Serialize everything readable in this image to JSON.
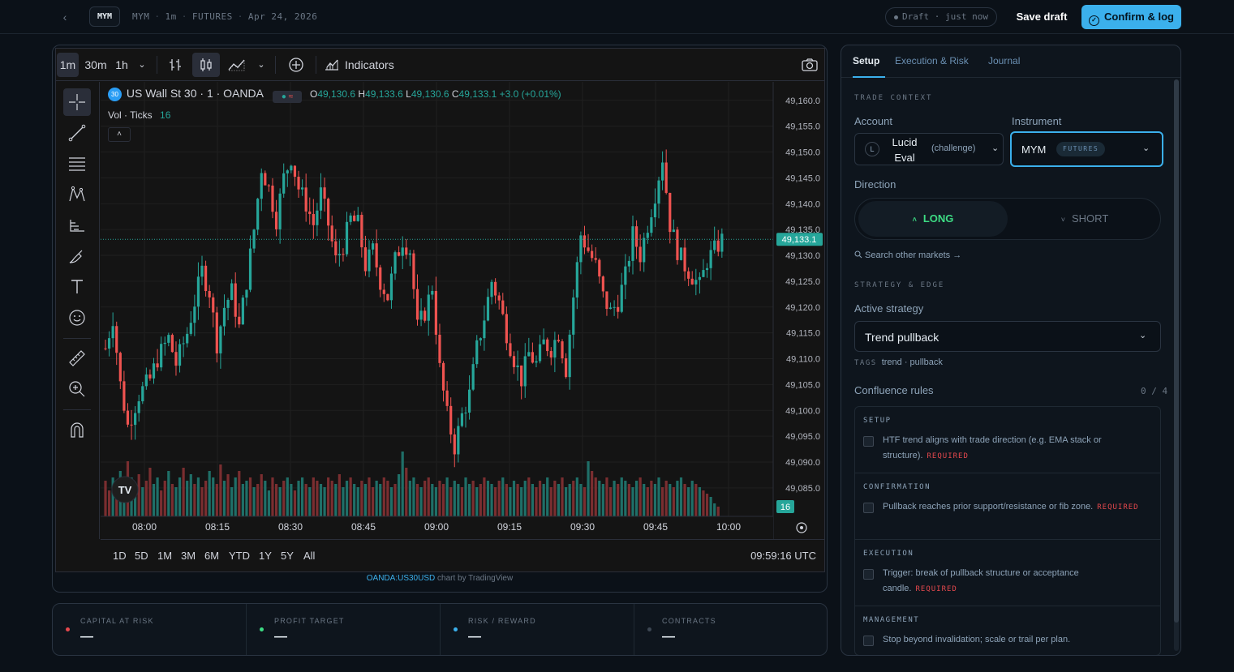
{
  "topbar": {
    "symbol": "MYM",
    "crumb": [
      "MYM",
      "1m",
      "FUTURES",
      "Apr 24, 2026"
    ],
    "draft_status": "Draft · just now",
    "save_draft": "Save draft",
    "confirm": "Confirm & log"
  },
  "toolbar": {
    "intervals": [
      "1m",
      "30m",
      "1h"
    ],
    "active_interval": "1m",
    "indicators": "Indicators"
  },
  "legend": {
    "badge": "30",
    "title": "US Wall St 30 · 1 · OANDA",
    "o_label": "O",
    "o": "49,130.6",
    "h_label": "H",
    "h": "49,133.6",
    "l_label": "L",
    "l": "49,130.6",
    "c_label": "C",
    "c": "49,133.1",
    "change": "+3.0 (+0.01%)",
    "vol_label": "Vol · Ticks",
    "vol_value": "16"
  },
  "chart_data": {
    "type": "candlestick",
    "symbol": "OANDA:US30USD",
    "interval": "1m",
    "y_ticks": [
      "49,160.0",
      "49,155.0",
      "49,150.0",
      "49,145.0",
      "49,140.0",
      "49,135.0",
      "49,130.0",
      "49,125.0",
      "49,120.0",
      "49,115.0",
      "49,110.0",
      "49,105.0",
      "49,100.0",
      "49,095.0",
      "49,090.0",
      "49,085.0"
    ],
    "ylim": [
      49082,
      49162
    ],
    "x_ticks": [
      "08:00",
      "08:15",
      "08:30",
      "08:45",
      "09:00",
      "09:15",
      "09:30",
      "09:45",
      "10:00"
    ],
    "last_price": "49,133.1",
    "last_volume": "16",
    "close_path": [
      [
        0,
        49112
      ],
      [
        2,
        49118
      ],
      [
        4,
        49105
      ],
      [
        6,
        49097
      ],
      [
        9,
        49103
      ],
      [
        12,
        49106
      ],
      [
        14,
        49110
      ],
      [
        17,
        49114
      ],
      [
        19,
        49109
      ],
      [
        22,
        49115
      ],
      [
        24,
        49121
      ],
      [
        26,
        49127
      ],
      [
        28,
        49123
      ],
      [
        30,
        49113
      ],
      [
        32,
        49120
      ],
      [
        34,
        49123
      ],
      [
        36,
        49116
      ],
      [
        38,
        49125
      ],
      [
        40,
        49135
      ],
      [
        42,
        49147
      ],
      [
        44,
        49143
      ],
      [
        46,
        49137
      ],
      [
        48,
        49145
      ],
      [
        50,
        49149
      ],
      [
        52,
        49143
      ],
      [
        54,
        49140
      ],
      [
        56,
        49136
      ],
      [
        58,
        49142
      ],
      [
        60,
        49136
      ],
      [
        62,
        49129
      ],
      [
        64,
        49132
      ],
      [
        66,
        49137
      ],
      [
        68,
        49136
      ],
      [
        70,
        49128
      ],
      [
        72,
        49131
      ],
      [
        74,
        49125
      ],
      [
        76,
        49122
      ],
      [
        78,
        49129
      ],
      [
        80,
        49133
      ],
      [
        82,
        49131
      ],
      [
        84,
        49116
      ],
      [
        86,
        49119
      ],
      [
        88,
        49124
      ],
      [
        90,
        49108
      ],
      [
        92,
        49099
      ],
      [
        94,
        49093
      ],
      [
        96,
        49099
      ],
      [
        98,
        49103
      ],
      [
        100,
        49112
      ],
      [
        102,
        49118
      ],
      [
        104,
        49125
      ],
      [
        106,
        49121
      ],
      [
        108,
        49115
      ],
      [
        110,
        49110
      ],
      [
        112,
        49106
      ],
      [
        114,
        49111
      ],
      [
        116,
        49109
      ],
      [
        118,
        49113
      ],
      [
        120,
        49112
      ],
      [
        122,
        49115
      ],
      [
        124,
        49108
      ],
      [
        126,
        49122
      ],
      [
        128,
        49134
      ],
      [
        130,
        49131
      ],
      [
        132,
        49128
      ],
      [
        134,
        49122
      ],
      [
        136,
        49119
      ],
      [
        138,
        49121
      ],
      [
        140,
        49126
      ],
      [
        142,
        49134
      ],
      [
        144,
        49130
      ],
      [
        146,
        49136
      ],
      [
        148,
        49142
      ],
      [
        150,
        49149
      ],
      [
        152,
        49136
      ],
      [
        154,
        49131
      ],
      [
        156,
        49128
      ],
      [
        158,
        49126
      ],
      [
        160,
        49124
      ],
      [
        162,
        49129
      ],
      [
        164,
        49131
      ],
      [
        166,
        49133
      ]
    ],
    "volume_levels": [
      0.55,
      0.4,
      0.6,
      0.45,
      0.7,
      0.5,
      0.85,
      0.6,
      0.5,
      0.65,
      0.45,
      0.55,
      0.75,
      0.5,
      0.6,
      0.4,
      0.55,
      0.7,
      0.5,
      0.45,
      0.6,
      0.75,
      0.55,
      0.65,
      0.5,
      0.6,
      0.45,
      0.55,
      0.7,
      0.6,
      0.5,
      0.8,
      0.55,
      0.65,
      0.45,
      0.6,
      0.7,
      0.5,
      0.55,
      0.6,
      0.45,
      0.5,
      0.65,
      0.55,
      0.4,
      0.6,
      0.5,
      0.45,
      0.55,
      0.6,
      0.5,
      0.4,
      0.55,
      0.6,
      0.5,
      0.45,
      0.6,
      0.55,
      0.5,
      0.45,
      0.6,
      0.55,
      0.5,
      0.65,
      0.45,
      0.55,
      0.6,
      0.5,
      0.45,
      0.55,
      0.5,
      0.6,
      0.45,
      0.55,
      0.5,
      0.6,
      0.55,
      0.45,
      0.5,
      0.65,
      1.0,
      0.75,
      0.55,
      0.6,
      0.5,
      0.45,
      0.55,
      0.6,
      0.5,
      0.45,
      0.55,
      0.5,
      0.6,
      0.45,
      0.55,
      0.5,
      0.45,
      0.6,
      0.5,
      0.55,
      0.45,
      0.5,
      0.6,
      0.55,
      0.5,
      0.45,
      0.55,
      0.6,
      0.5,
      0.45,
      0.55,
      0.5,
      0.45,
      0.55,
      0.6,
      0.5,
      0.45,
      0.55,
      0.5,
      0.6,
      0.45,
      0.55,
      0.5,
      0.6,
      0.45,
      0.5,
      0.55,
      0.6,
      0.5,
      0.45,
      0.85,
      0.7,
      0.6,
      0.55,
      0.5,
      0.6,
      0.45,
      0.55,
      0.5,
      0.6,
      0.55,
      0.5,
      0.45,
      0.55,
      0.6,
      0.5,
      0.45,
      0.55,
      0.5,
      0.6,
      0.45,
      0.55,
      0.5,
      0.45,
      0.55,
      0.6,
      0.5,
      0.45,
      0.55,
      0.5,
      0.45,
      0.4,
      0.35,
      0.3,
      0.2,
      0.15
    ]
  },
  "range": {
    "buttons": [
      "1D",
      "5D",
      "1M",
      "3M",
      "6M",
      "YTD",
      "1Y",
      "5Y",
      "All"
    ],
    "time": "09:59:16 UTC"
  },
  "credit": {
    "link": "OANDA:US30USD",
    "text": " chart by TradingView"
  },
  "stats": [
    {
      "label": "CAPITAL AT RISK",
      "value": "—",
      "color": "#e5484d"
    },
    {
      "label": "PROFIT TARGET",
      "value": "—",
      "color": "#3ddc84"
    },
    {
      "label": "RISK / REWARD",
      "value": "—",
      "color": "#3bb0ec"
    },
    {
      "label": "CONTRACTS",
      "value": "—",
      "color": "#3d4753"
    }
  ],
  "panel": {
    "tabs": [
      "Setup",
      "Execution & Risk",
      "Journal"
    ],
    "trade_context": "TRADE CONTEXT",
    "account_label": "Account",
    "account_avatar": "L",
    "account_name": "Lucid Eval",
    "account_type": "(challenge)",
    "instrument_label": "Instrument",
    "instrument": "MYM",
    "instrument_badge": "FUTURES",
    "direction_label": "Direction",
    "long": "LONG",
    "short": "SHORT",
    "search_markets": "Search other markets →",
    "strategy_section": "STRATEGY & EDGE",
    "active_strategy_label": "Active strategy",
    "active_strategy": "Trend pullback",
    "tags_label": "TAGS",
    "tags": "trend · pullback",
    "confluence_label": "Confluence rules",
    "confluence_count": "0 / 4",
    "rules": [
      {
        "kind": "SETUP",
        "text": "HTF trend aligns with trade direction (e.g. EMA stack or structure).",
        "required": "REQUIRED"
      },
      {
        "kind": "CONFIRMATION",
        "text": "Pullback reaches prior support/resistance or fib zone.",
        "required": "REQUIRED"
      },
      {
        "kind": "EXECUTION",
        "text": "Trigger: break of pullback structure or acceptance candle.",
        "required": "REQUIRED"
      },
      {
        "kind": "MANAGEMENT",
        "text": "Stop beyond invalidation; scale or trail per plan.",
        "required": ""
      }
    ]
  },
  "colors": {
    "up": "#26a69a",
    "down": "#ef5350",
    "accent": "#3bb0ec",
    "long": "#3ddc84"
  }
}
